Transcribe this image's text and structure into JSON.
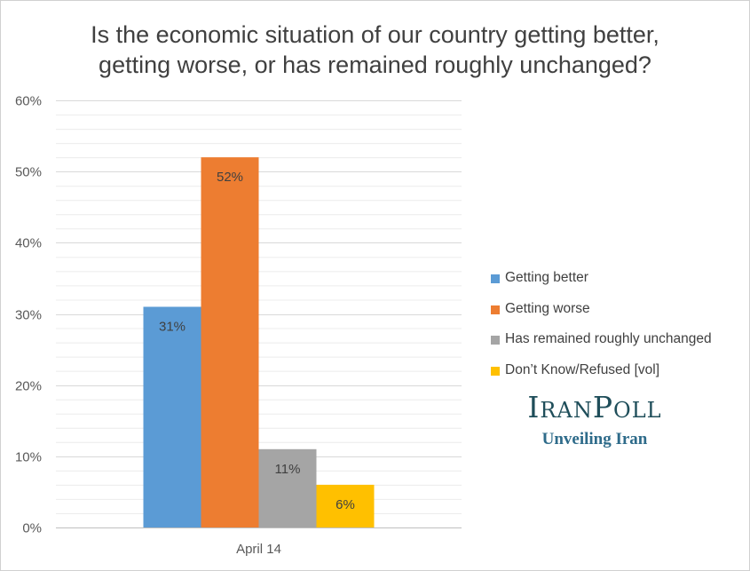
{
  "chart_data": {
    "type": "bar",
    "title": "Is the economic situation of our country getting better, getting worse, or has remained roughly unchanged?",
    "title_lines": [
      "Is the economic situation of our country getting better,",
      "getting worse, or has remained roughly unchanged?"
    ],
    "categories": [
      "April 14"
    ],
    "series": [
      {
        "name": "Getting better",
        "values": [
          31
        ],
        "color": "#5b9bd5",
        "label": "31%"
      },
      {
        "name": "Getting worse",
        "values": [
          52
        ],
        "color": "#ed7d31",
        "label": "52%"
      },
      {
        "name": "Has remained roughly unchanged",
        "values": [
          11
        ],
        "color": "#a5a5a5",
        "label": "11%"
      },
      {
        "name": "Don’t Know/Refused [vol]",
        "values": [
          6
        ],
        "color": "#ffc000",
        "label": "6%"
      }
    ],
    "ylim": [
      0,
      60
    ],
    "y_ticks": [
      {
        "value": 0,
        "label": "0%"
      },
      {
        "value": 10,
        "label": "10%"
      },
      {
        "value": 20,
        "label": "20%"
      },
      {
        "value": 30,
        "label": "30%"
      },
      {
        "value": 40,
        "label": "40%"
      },
      {
        "value": 50,
        "label": "50%"
      },
      {
        "value": 60,
        "label": "60%"
      }
    ],
    "minor_grid_step": 2,
    "xlabel": "",
    "ylabel": "",
    "legend_position": "right"
  },
  "logo": {
    "title_cap_1": "I",
    "title_rest_1": "RAN",
    "title_cap_2": "P",
    "title_rest_2": "OLL",
    "subtitle": "Unveiling Iran"
  }
}
